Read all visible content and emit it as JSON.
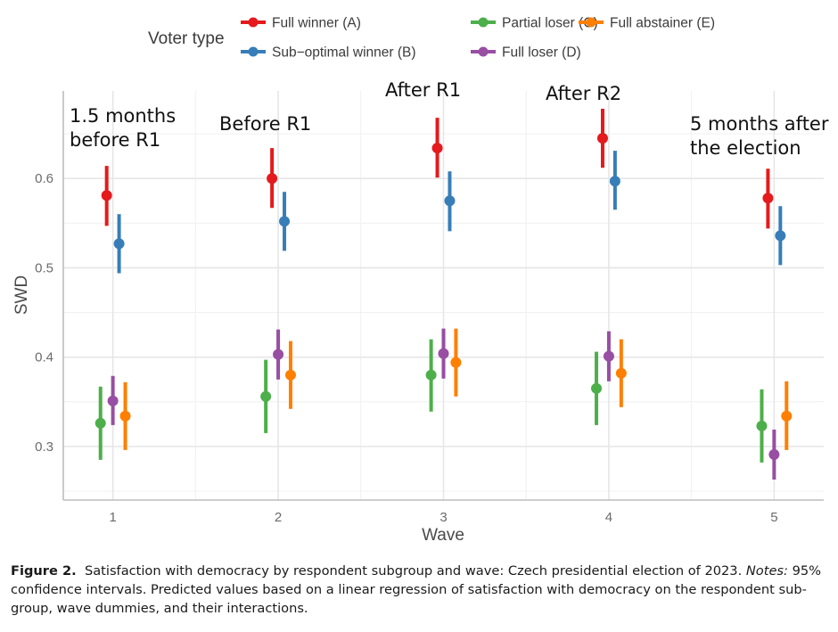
{
  "chart_data": {
    "type": "scatter",
    "subtype": "point-range (estimate with 95% confidence interval)",
    "xlabel": "Wave",
    "ylabel": "SWD",
    "x": [
      1,
      2,
      3,
      4,
      5
    ],
    "x_tick_labels": [
      "1",
      "2",
      "3",
      "4",
      "5"
    ],
    "y_ticks": [
      0.3,
      0.4,
      0.5,
      0.6
    ],
    "y_tick_labels": [
      "0.3",
      "0.4",
      "0.5",
      "0.6"
    ],
    "ylim": [
      0.24,
      0.698
    ],
    "xlim": [
      0.7,
      5.3
    ],
    "grid": true,
    "legend": {
      "title": "Voter type",
      "placement": "top"
    },
    "series": [
      {
        "name": "Full winner (A)",
        "color": "#e41a1c",
        "values": [
          0.581,
          0.6,
          0.634,
          0.645,
          0.578
        ],
        "lower": [
          0.547,
          0.567,
          0.601,
          0.612,
          0.544
        ],
        "upper": [
          0.614,
          0.634,
          0.668,
          0.678,
          0.611
        ]
      },
      {
        "name": "Sub−optimal winner (B)",
        "color": "#377eb8",
        "values": [
          0.527,
          0.552,
          0.575,
          0.597,
          0.536
        ],
        "lower": [
          0.494,
          0.519,
          0.541,
          0.565,
          0.503
        ],
        "upper": [
          0.56,
          0.585,
          0.608,
          0.631,
          0.569
        ]
      },
      {
        "name": "Partial loser (C)",
        "color": "#4daf4a",
        "values": [
          0.326,
          0.356,
          0.38,
          0.365,
          0.323
        ],
        "lower": [
          0.285,
          0.315,
          0.339,
          0.324,
          0.282
        ],
        "upper": [
          0.367,
          0.397,
          0.42,
          0.406,
          0.364
        ]
      },
      {
        "name": "Full loser (D)",
        "color": "#984ea3",
        "values": [
          0.351,
          0.403,
          0.404,
          0.401,
          0.291
        ],
        "lower": [
          0.324,
          0.375,
          0.376,
          0.373,
          0.263
        ],
        "upper": [
          0.379,
          0.431,
          0.432,
          0.429,
          0.319
        ]
      },
      {
        "name": "Full abstainer (E)",
        "color": "#ff7f00",
        "values": [
          0.334,
          0.38,
          0.394,
          0.382,
          0.334
        ],
        "lower": [
          0.296,
          0.342,
          0.356,
          0.344,
          0.296
        ],
        "upper": [
          0.372,
          0.418,
          0.432,
          0.42,
          0.373
        ]
      }
    ],
    "annotations": [
      {
        "wave": 1,
        "lines": [
          "1.5 months",
          "before R1"
        ]
      },
      {
        "wave": 2,
        "lines": [
          "Before R1"
        ]
      },
      {
        "wave": 3,
        "lines": [
          "After R1"
        ]
      },
      {
        "wave": 4,
        "lines": [
          "After R2"
        ]
      },
      {
        "wave": 5,
        "lines": [
          "5 months after",
          "the election"
        ]
      }
    ]
  },
  "caption": {
    "label": "Figure 2.",
    "text": "Satisfaction with democracy by respondent subgroup and wave: Czech presidential election of 2023.",
    "notes_label": "Notes:",
    "notes_text": "95% confidence intervals. Predicted values based on a linear regression of satisfaction with democracy on the respondent sub-group, wave dummies, and their interactions."
  }
}
